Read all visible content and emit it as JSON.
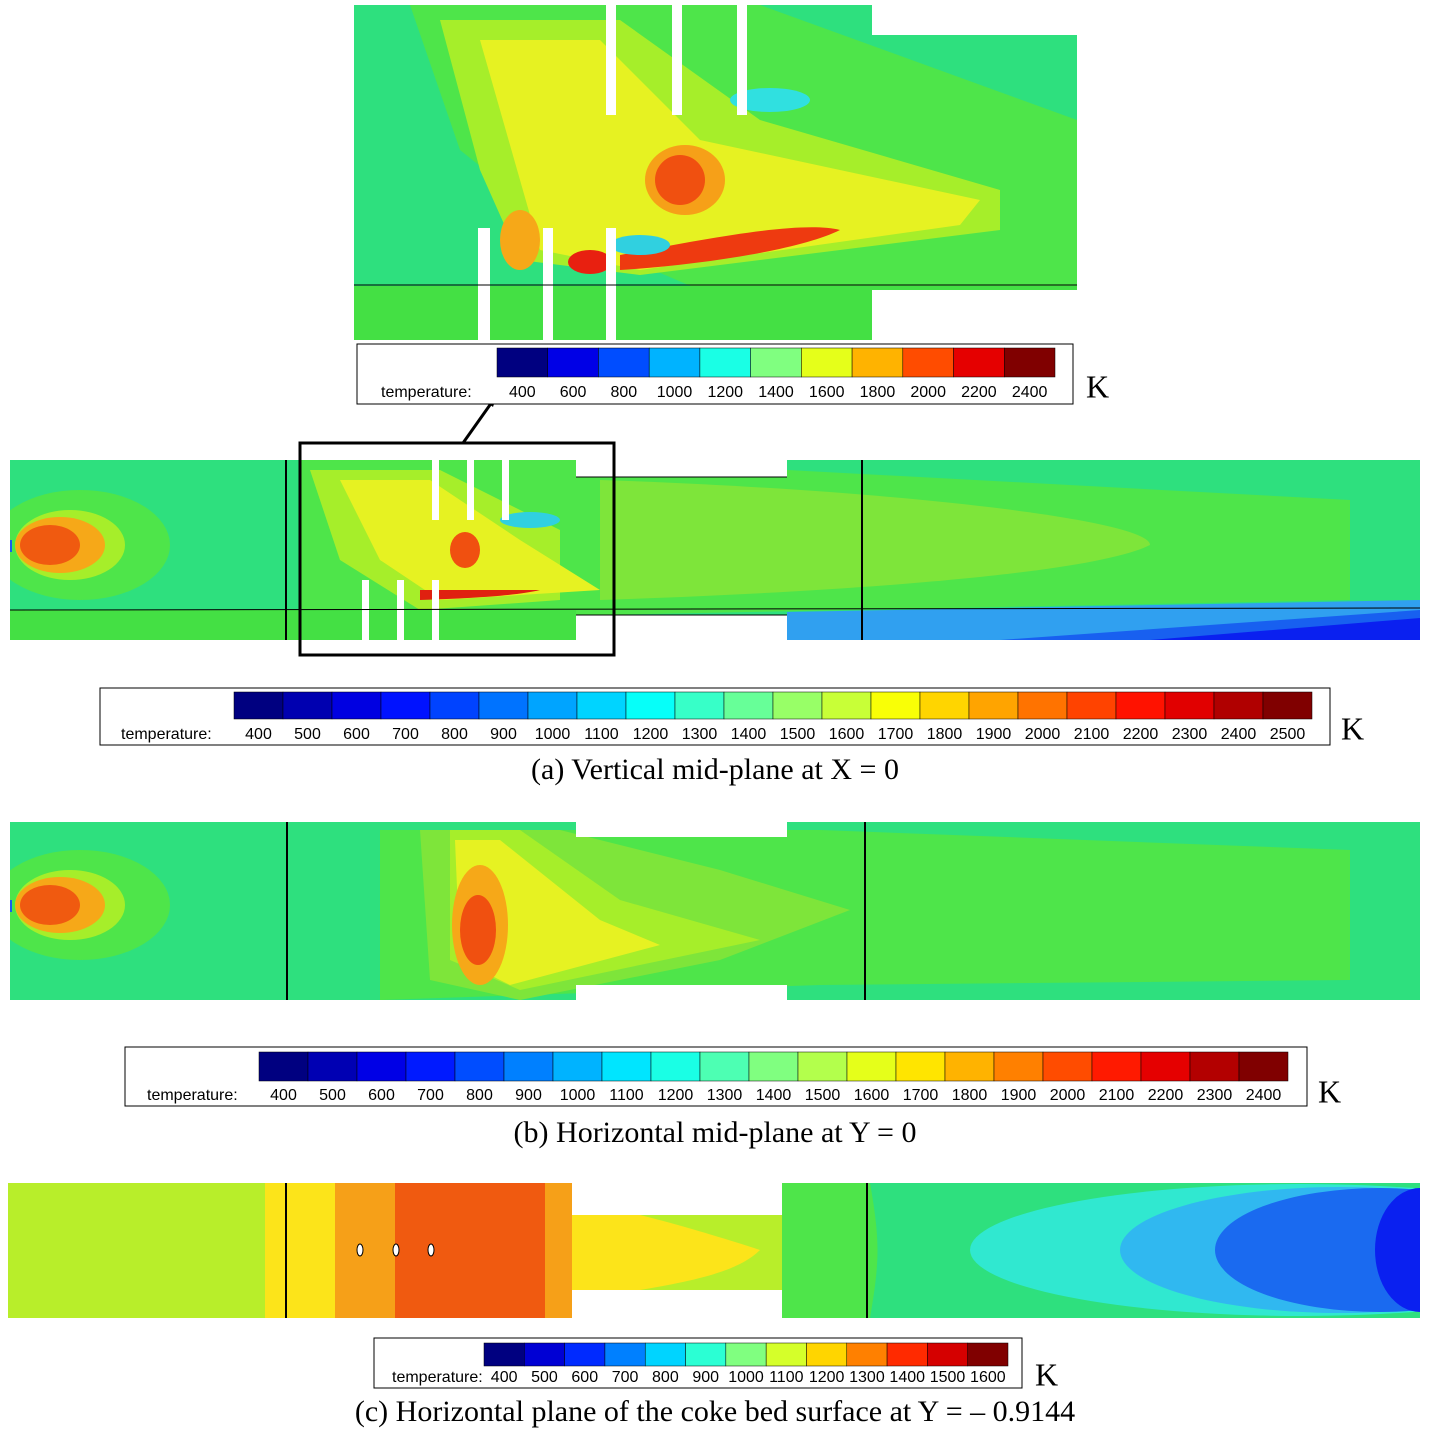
{
  "zoom_colorbar": {
    "label": "temperature:",
    "ticks": [
      400,
      600,
      800,
      1000,
      1200,
      1400,
      1600,
      1800,
      2000,
      2200,
      2400
    ],
    "unit": "K"
  },
  "panels": [
    {
      "caption": "(a) Vertical mid-plane at X = 0",
      "colorbar": {
        "label": "temperature:",
        "ticks": [
          400,
          500,
          600,
          700,
          800,
          900,
          1000,
          1100,
          1200,
          1300,
          1400,
          1500,
          1600,
          1700,
          1800,
          1900,
          2000,
          2100,
          2200,
          2300,
          2400,
          2500
        ],
        "unit": "K"
      }
    },
    {
      "caption": "(b) Horizontal mid-plane at Y = 0",
      "colorbar": {
        "label": "temperature:",
        "ticks": [
          400,
          500,
          600,
          700,
          800,
          900,
          1000,
          1100,
          1200,
          1300,
          1400,
          1500,
          1600,
          1700,
          1800,
          1900,
          2000,
          2100,
          2200,
          2300,
          2400
        ],
        "unit": "K"
      }
    },
    {
      "caption": "(c) Horizontal plane of the coke bed surface at Y = – 0.9144",
      "colorbar": {
        "label": "temperature:",
        "ticks": [
          400,
          500,
          600,
          700,
          800,
          900,
          1000,
          1100,
          1200,
          1300,
          1400,
          1500,
          1600
        ],
        "unit": "K"
      }
    }
  ]
}
